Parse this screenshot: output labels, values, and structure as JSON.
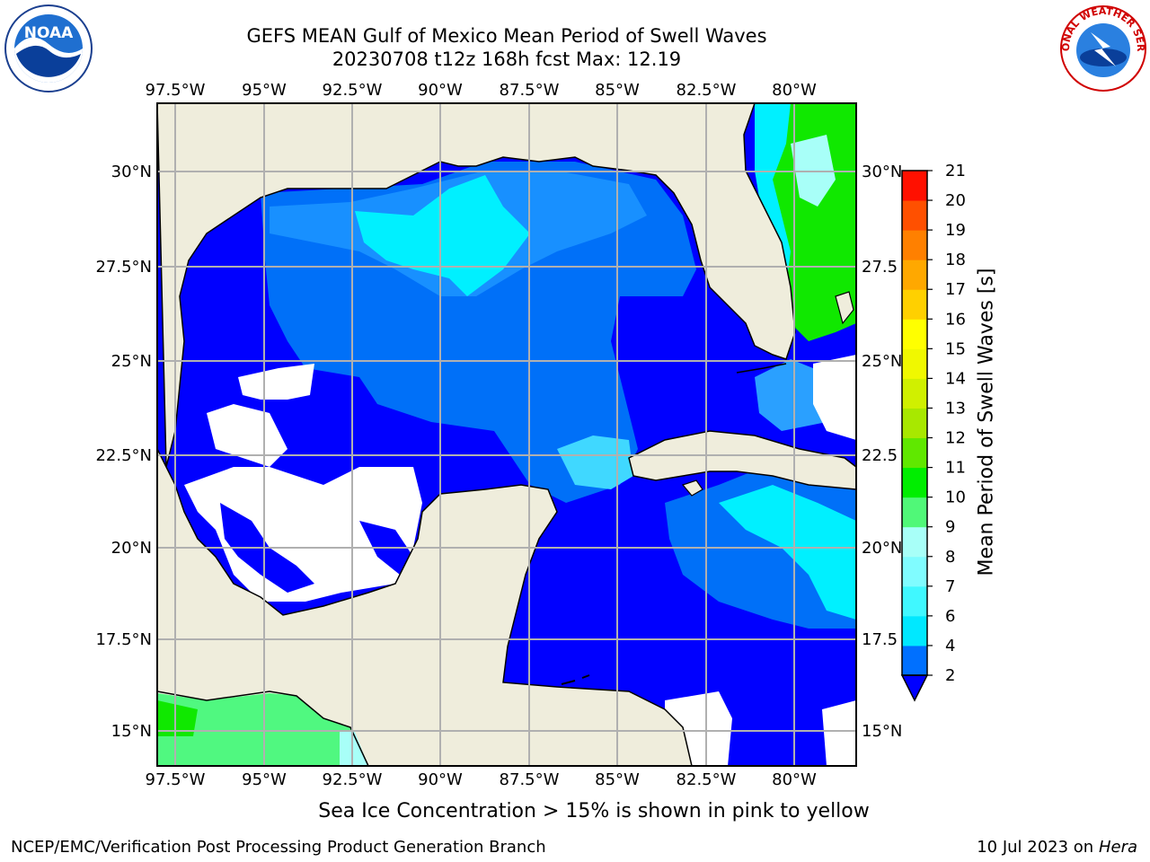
{
  "title": {
    "line1": "GEFS MEAN Gulf of Mexico Mean Period of Swell Waves",
    "line2": "20230708 t12z 168h fcst   Max: 12.19"
  },
  "axes": {
    "lon_labels": [
      "97.5°W",
      "95°W",
      "92.5°W",
      "90°W",
      "87.5°W",
      "85°W",
      "82.5°W",
      "80°W"
    ],
    "lat_labels_left": [
      "30°N",
      "27.5°N",
      "25°N",
      "22.5°N",
      "20°N",
      "17.5°N",
      "15°N"
    ],
    "lat_labels_right": [
      "30°N",
      "27.5",
      "25°N",
      "22.5",
      "20°N",
      "17.5",
      "15°N"
    ]
  },
  "colorbar": {
    "title": "Mean Period of Swell Waves [s]",
    "ticks": [
      "2",
      "4",
      "6",
      "7",
      "8",
      "9",
      "10",
      "11",
      "12",
      "13",
      "14",
      "15",
      "16",
      "17",
      "18",
      "19",
      "20",
      "21"
    ],
    "colors": [
      "#0070ff",
      "#00e8ff",
      "#40f8ff",
      "#80fcff",
      "#a8fff8",
      "#50f878",
      "#00ee00",
      "#60e800",
      "#a8e800",
      "#d0f000",
      "#f0f800",
      "#ffff00",
      "#ffd000",
      "#ffa800",
      "#ff8000",
      "#ff5000",
      "#ff1000"
    ]
  },
  "palette": {
    "land": "#efeddc",
    "white": "#ffffff",
    "blue": "#0000ff",
    "mid_blue": "#0070f8",
    "light_blue": "#1890ff",
    "cyan": "#00f0ff",
    "pale_cyan": "#60f8ff",
    "green": "#10e800",
    "light_green": "#50f880"
  },
  "footer": {
    "ice_note": "Sea Ice Concentration > 15% is shown in pink to yellow",
    "credit_left": "NCEP/EMC/Verification Post Processing Product Generation Branch",
    "credit_right_date": "10 Jul 2023 on ",
    "credit_right_host": "Hera"
  },
  "logos": {
    "noaa_text": "NOAA",
    "nws_text": "NATIONAL WEATHER SERVICE"
  }
}
